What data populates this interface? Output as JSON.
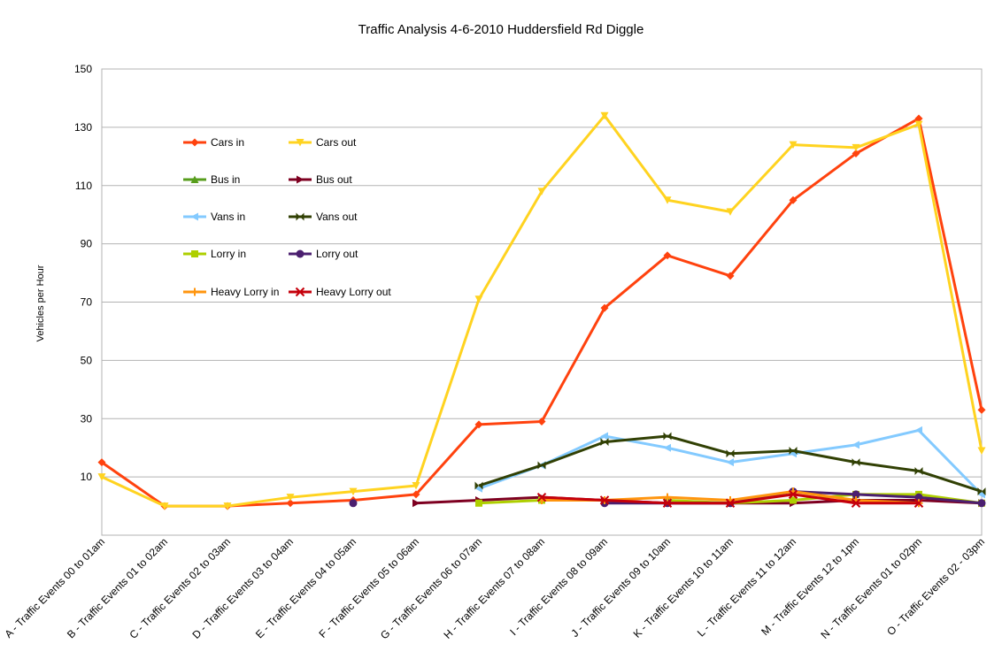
{
  "chart_data": {
    "type": "line",
    "title": "Traffic Analysis 4-6-2010 Huddersfield Rd Diggle",
    "xlabel": "",
    "ylabel": "Vehicles per Hour",
    "ylim": [
      -10,
      150
    ],
    "yticks": [
      10,
      30,
      50,
      70,
      90,
      110,
      130,
      150
    ],
    "grid": true,
    "legend_position": "top-left inside plot",
    "categories": [
      "A - Traffic Events 00 to 01am",
      "B - Traffic Events 01 to 02am",
      "C - Traffic Events 02 to 03am",
      "D - Traffic Events 03 to 04am",
      "E - Traffic Events 04 to 05am",
      "F - Traffic Events 05 to 06am",
      "G - Traffic Events 06 to 07am",
      "H - Traffic Events 07 to 08am",
      "I - Traffic Events 08 to 09am",
      "J - Traffic Events 09 to 10am",
      "K - Traffic Events 10 to 11am",
      "L - Traffic Events 11 to 12am",
      "M - Traffic Events 12 to 1pm",
      "N - Traffic Events 01 to 02pm",
      "O - Traffic Events 02 - 03pm"
    ],
    "series": [
      {
        "name": "Cars in",
        "color": "#ff420e",
        "marker": "diamond",
        "values": [
          15,
          0,
          0,
          1,
          2,
          4,
          28,
          29,
          68,
          86,
          79,
          105,
          121,
          133,
          33
        ]
      },
      {
        "name": "Cars out",
        "color": "#ffd320",
        "marker": "triangle-down",
        "values": [
          10,
          0,
          0,
          3,
          5,
          7,
          71,
          108,
          134,
          105,
          101,
          124,
          123,
          131,
          19
        ]
      },
      {
        "name": "Bus in",
        "color": "#579d1c",
        "marker": "triangle-up",
        "values": [
          null,
          null,
          null,
          null,
          null,
          null,
          null,
          null,
          null,
          null,
          null,
          null,
          null,
          null,
          null
        ]
      },
      {
        "name": "Bus out",
        "color": "#7e0021",
        "marker": "triangle-right",
        "values": [
          null,
          null,
          null,
          null,
          null,
          1,
          2,
          3,
          2,
          1,
          1,
          1,
          2,
          2,
          1
        ]
      },
      {
        "name": "Vans in",
        "color": "#83caff",
        "marker": "triangle-left",
        "values": [
          null,
          null,
          null,
          null,
          null,
          null,
          6,
          14,
          24,
          20,
          15,
          18,
          21,
          26,
          4
        ]
      },
      {
        "name": "Vans out",
        "color": "#314004",
        "marker": "bowtie",
        "values": [
          null,
          null,
          null,
          null,
          null,
          null,
          7,
          14,
          22,
          24,
          18,
          19,
          15,
          12,
          5
        ]
      },
      {
        "name": "Lorry in",
        "color": "#aecf00",
        "marker": "square",
        "values": [
          null,
          null,
          null,
          null,
          null,
          null,
          1,
          2,
          null,
          2,
          1,
          2,
          4,
          4,
          1
        ]
      },
      {
        "name": "Lorry out",
        "color": "#4b1f6f",
        "marker": "circle",
        "values": [
          null,
          null,
          null,
          null,
          1,
          null,
          null,
          null,
          1,
          1,
          1,
          5,
          4,
          3,
          1
        ]
      },
      {
        "name": "Heavy Lorry in",
        "color": "#ff950e",
        "marker": "plus",
        "values": [
          null,
          null,
          null,
          null,
          null,
          null,
          null,
          2,
          2,
          3,
          2,
          5,
          2,
          1,
          null
        ]
      },
      {
        "name": "Heavy Lorry out",
        "color": "#c5000b",
        "marker": "x",
        "values": [
          null,
          null,
          null,
          null,
          null,
          null,
          null,
          3,
          2,
          1,
          1,
          4,
          1,
          1,
          null
        ]
      }
    ]
  }
}
